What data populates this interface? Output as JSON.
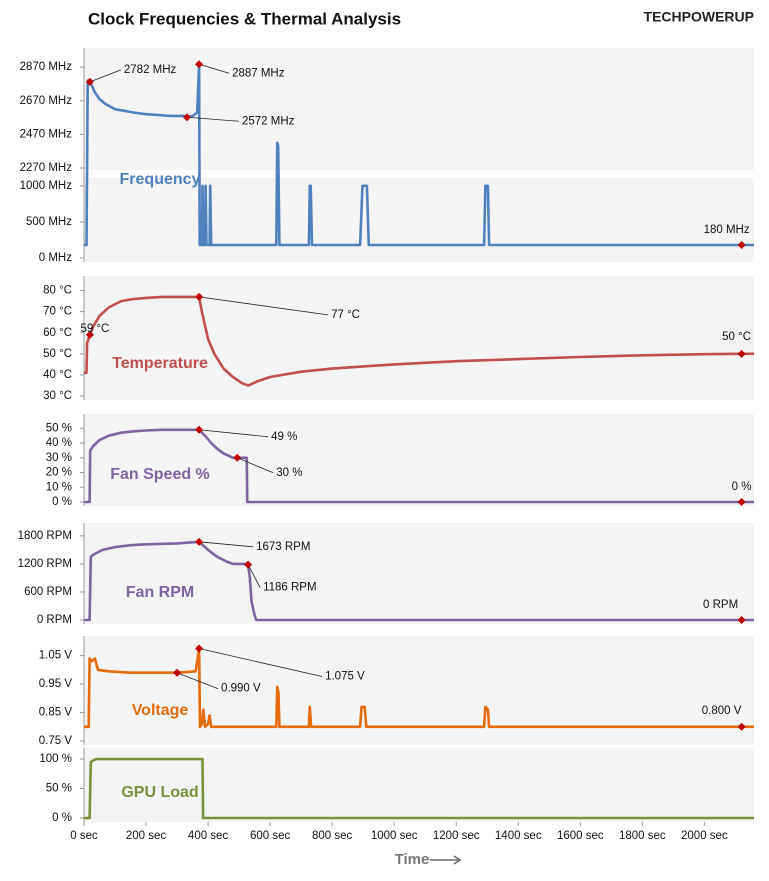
{
  "title": "Clock Frequencies & Thermal Analysis",
  "logo": "TECHPOWERUP",
  "chart_data": [
    {
      "type": "line",
      "title": "Frequency",
      "color": "#4f81bd",
      "xlim": [
        0,
        2160
      ],
      "ylim": [
        0,
        2960
      ],
      "ybreak": [
        1080,
        2270
      ],
      "yticks": [
        {
          "value": 0,
          "label": "0 MHz"
        },
        {
          "value": 500,
          "label": "500 MHz"
        },
        {
          "value": 1000,
          "label": "1000 MHz"
        },
        {
          "value": 2270,
          "label": "2270 MHz"
        },
        {
          "value": 2470,
          "label": "2470 MHz"
        },
        {
          "value": 2670,
          "label": "2670 MHz"
        },
        {
          "value": 2870,
          "label": "2870 MHz"
        }
      ],
      "x": [
        0,
        8,
        12,
        19,
        25,
        35,
        50,
        70,
        100,
        130,
        160,
        200,
        240,
        280,
        320,
        332,
        350,
        365,
        371,
        373,
        380,
        382,
        385,
        390,
        392,
        395,
        405,
        407,
        410,
        420,
        600,
        620,
        623,
        626,
        630,
        700,
        725,
        728,
        731,
        735,
        890,
        898,
        905,
        912,
        918,
        1290,
        1294,
        1298,
        1302,
        1306,
        1500,
        1800,
        2120,
        2160
      ],
      "values": [
        180,
        180,
        2790,
        2782,
        2760,
        2720,
        2680,
        2650,
        2620,
        2610,
        2600,
        2590,
        2585,
        2580,
        2580,
        2572,
        2580,
        2600,
        2887,
        180,
        180,
        1000,
        180,
        180,
        1000,
        180,
        180,
        1000,
        180,
        180,
        180,
        180,
        2420,
        2400,
        180,
        180,
        180,
        1000,
        1000,
        180,
        180,
        1000,
        1000,
        1000,
        180,
        180,
        1000,
        1000,
        1000,
        180,
        180,
        180,
        180,
        180
      ],
      "annotations": [
        {
          "x": 19,
          "y": 2782,
          "label": "2782 MHz"
        },
        {
          "x": 371,
          "y": 2887,
          "label": "2887 MHz"
        },
        {
          "x": 332,
          "y": 2572,
          "label": "2572 MHz"
        },
        {
          "x": 2120,
          "y": 180,
          "label": "180 MHz"
        }
      ]
    },
    {
      "type": "line",
      "title": "Temperature",
      "color": "#c0504d",
      "xlim": [
        0,
        2160
      ],
      "ylim": [
        30,
        85
      ],
      "yticks": [
        {
          "value": 30,
          "label": "30 °C"
        },
        {
          "value": 40,
          "label": "40 °C"
        },
        {
          "value": 50,
          "label": "50 °C"
        },
        {
          "value": 60,
          "label": "60 °C"
        },
        {
          "value": 70,
          "label": "70 °C"
        },
        {
          "value": 80,
          "label": "80 °C"
        }
      ],
      "x": [
        0,
        8,
        10,
        19,
        30,
        50,
        80,
        120,
        160,
        200,
        250,
        300,
        371,
        380,
        400,
        420,
        450,
        480,
        510,
        530,
        560,
        600,
        700,
        800,
        1000,
        1200,
        1400,
        1600,
        1800,
        2000,
        2120,
        2160
      ],
      "values": [
        41,
        41,
        55,
        59,
        63,
        68,
        72,
        75,
        76,
        76.5,
        77,
        77,
        77,
        70,
        57,
        50,
        43,
        39,
        36,
        35,
        37,
        39,
        41.5,
        43,
        45,
        46.5,
        47.5,
        48.5,
        49.3,
        49.8,
        50,
        50
      ],
      "annotations": [
        {
          "x": 19,
          "y": 59,
          "label": "59 °C"
        },
        {
          "x": 371,
          "y": 77,
          "label": "77 °C"
        },
        {
          "x": 2120,
          "y": 50,
          "label": "50 °C"
        }
      ]
    },
    {
      "type": "line",
      "title": "Fan Speed %",
      "color": "#8064a2",
      "xlim": [
        0,
        2160
      ],
      "ylim": [
        0,
        57
      ],
      "yticks": [
        {
          "value": 0,
          "label": "0 %"
        },
        {
          "value": 10,
          "label": "10 %"
        },
        {
          "value": 20,
          "label": "20 %"
        },
        {
          "value": 30,
          "label": "30 %"
        },
        {
          "value": 40,
          "label": "40 %"
        },
        {
          "value": 50,
          "label": "50 %"
        }
      ],
      "x": [
        0,
        18,
        20,
        30,
        50,
        80,
        120,
        160,
        200,
        250,
        300,
        371,
        390,
        410,
        430,
        450,
        470,
        480,
        494,
        525,
        526,
        2120,
        2160
      ],
      "values": [
        0,
        0,
        35,
        38,
        42,
        45,
        47,
        48,
        48.5,
        49,
        49,
        49,
        45,
        40,
        36,
        33,
        31,
        30,
        30,
        30,
        0,
        0,
        0
      ],
      "annotations": [
        {
          "x": 371,
          "y": 49,
          "label": "49 %"
        },
        {
          "x": 494,
          "y": 30,
          "label": "30 %"
        },
        {
          "x": 2120,
          "y": 0,
          "label": "0 %"
        }
      ]
    },
    {
      "type": "line",
      "title": "Fan RPM",
      "color": "#8064a2",
      "xlim": [
        0,
        2160
      ],
      "ylim": [
        0,
        1990
      ],
      "yticks": [
        {
          "value": 0,
          "label": "0 RPM"
        },
        {
          "value": 600,
          "label": "600 RPM"
        },
        {
          "value": 1200,
          "label": "1200 RPM"
        },
        {
          "value": 1800,
          "label": "1800 RPM"
        }
      ],
      "x": [
        0,
        18,
        22,
        30,
        60,
        100,
        150,
        200,
        300,
        371,
        400,
        430,
        460,
        480,
        525,
        529,
        535,
        540,
        550,
        555,
        2120,
        2160
      ],
      "values": [
        0,
        0,
        1350,
        1400,
        1500,
        1560,
        1600,
        1620,
        1640,
        1673,
        1500,
        1350,
        1250,
        1200,
        1200,
        1186,
        900,
        400,
        100,
        0,
        0,
        0
      ],
      "annotations": [
        {
          "x": 371,
          "y": 1673,
          "label": "1673 RPM"
        },
        {
          "x": 529,
          "y": 1186,
          "label": "1186 RPM"
        },
        {
          "x": 2120,
          "y": 0,
          "label": "0 RPM"
        }
      ]
    },
    {
      "type": "line",
      "title": "Voltage",
      "color": "#e46c0a",
      "xlim": [
        0,
        2160
      ],
      "ylim": [
        0.75,
        1.105
      ],
      "yticks": [
        {
          "value": 0.75,
          "label": "0.75 V"
        },
        {
          "value": 0.85,
          "label": "0.85 V"
        },
        {
          "value": 0.95,
          "label": "0.95 V"
        },
        {
          "value": 1.05,
          "label": "1.05 V"
        }
      ],
      "x": [
        0,
        15,
        18,
        25,
        35,
        45,
        80,
        150,
        250,
        300,
        360,
        371,
        374,
        380,
        385,
        390,
        400,
        405,
        410,
        620,
        623,
        627,
        630,
        725,
        728,
        732,
        890,
        895,
        905,
        910,
        1290,
        1294,
        1302,
        1306,
        2120,
        2160
      ],
      "values": [
        0.8,
        0.8,
        1.04,
        1.03,
        1.04,
        1.0,
        0.995,
        0.99,
        0.99,
        0.99,
        0.995,
        1.075,
        0.8,
        0.81,
        0.86,
        0.8,
        0.81,
        0.84,
        0.8,
        0.8,
        0.94,
        0.92,
        0.8,
        0.8,
        0.87,
        0.8,
        0.8,
        0.87,
        0.87,
        0.8,
        0.8,
        0.87,
        0.86,
        0.8,
        0.8,
        0.8
      ],
      "annotations": [
        {
          "x": 300,
          "y": 0.99,
          "label": "0.990 V"
        },
        {
          "x": 371,
          "y": 1.075,
          "label": "1.075 V"
        },
        {
          "x": 2120,
          "y": 0.8,
          "label": "0.800 V"
        }
      ]
    },
    {
      "type": "line",
      "title": "GPU Load",
      "color": "#77933c",
      "xlim": [
        0,
        2160
      ],
      "ylim": [
        0,
        112
      ],
      "yticks": [
        {
          "value": 0,
          "label": "0 %"
        },
        {
          "value": 50,
          "label": "50 %"
        },
        {
          "value": 100,
          "label": "100 %"
        }
      ],
      "x": [
        0,
        18,
        22,
        30,
        40,
        382,
        384,
        2160
      ],
      "values": [
        0,
        0,
        95,
        98,
        100,
        100,
        0,
        0
      ],
      "xticks": [
        {
          "value": 0,
          "label": "0 sec"
        },
        {
          "value": 200,
          "label": "200 sec"
        },
        {
          "value": 400,
          "label": "400 sec"
        },
        {
          "value": 600,
          "label": "600 sec"
        },
        {
          "value": 800,
          "label": "800 sec"
        },
        {
          "value": 1000,
          "label": "1000 sec"
        },
        {
          "value": 1200,
          "label": "1200 sec"
        },
        {
          "value": 1400,
          "label": "1400 sec"
        },
        {
          "value": 1600,
          "label": "1600 sec"
        },
        {
          "value": 1800,
          "label": "1800 sec"
        },
        {
          "value": 2000,
          "label": "2000 sec"
        }
      ],
      "xlabel": "Time"
    }
  ]
}
